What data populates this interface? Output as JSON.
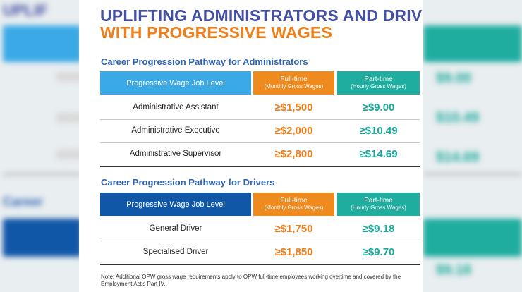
{
  "title": {
    "line1": "UPLIFTING ADMINISTRATORS AND DRIVERS",
    "line2": "WITH PROGRESSIVE WAGES"
  },
  "columns": {
    "job_level": "Progressive Wage Job Level",
    "fulltime": "Full-time",
    "fulltime_sub": "(Monthly Gross Wages)",
    "parttime": "Part-time",
    "parttime_sub": "(Hourly Gross Wages)"
  },
  "admin": {
    "heading": "Career Progression Pathway for Administrators",
    "rows": [
      {
        "job": "Administrative Assistant",
        "fulltime": "≥$1,500",
        "parttime": "≥$9.00"
      },
      {
        "job": "Administrative Executive",
        "fulltime": "≥$2,000",
        "parttime": "≥$10.49"
      },
      {
        "job": "Administrative Supervisor",
        "fulltime": "≥$2,800",
        "parttime": "≥$14.69"
      }
    ]
  },
  "drivers": {
    "heading": "Career Progression Pathway for Drivers",
    "rows": [
      {
        "job": "General Driver",
        "fulltime": "≥$1,750",
        "parttime": "≥$9.18"
      },
      {
        "job": "Specialised Driver",
        "fulltime": "≥$1,850",
        "parttime": "≥$9.70"
      }
    ]
  },
  "note": "Note: Additional OPW gross wage requirements apply to OPW full-time employees working overtime and covered by the Employment Act's Part IV.",
  "colors": {
    "title_blue": "#4350a3",
    "title_orange": "#ef7f1a",
    "admin_header_blue": "#3aa9e6",
    "driver_header_blue": "#1157a8",
    "fulltime_orange": "#ef8a1e",
    "parttime_teal": "#1fada0"
  }
}
